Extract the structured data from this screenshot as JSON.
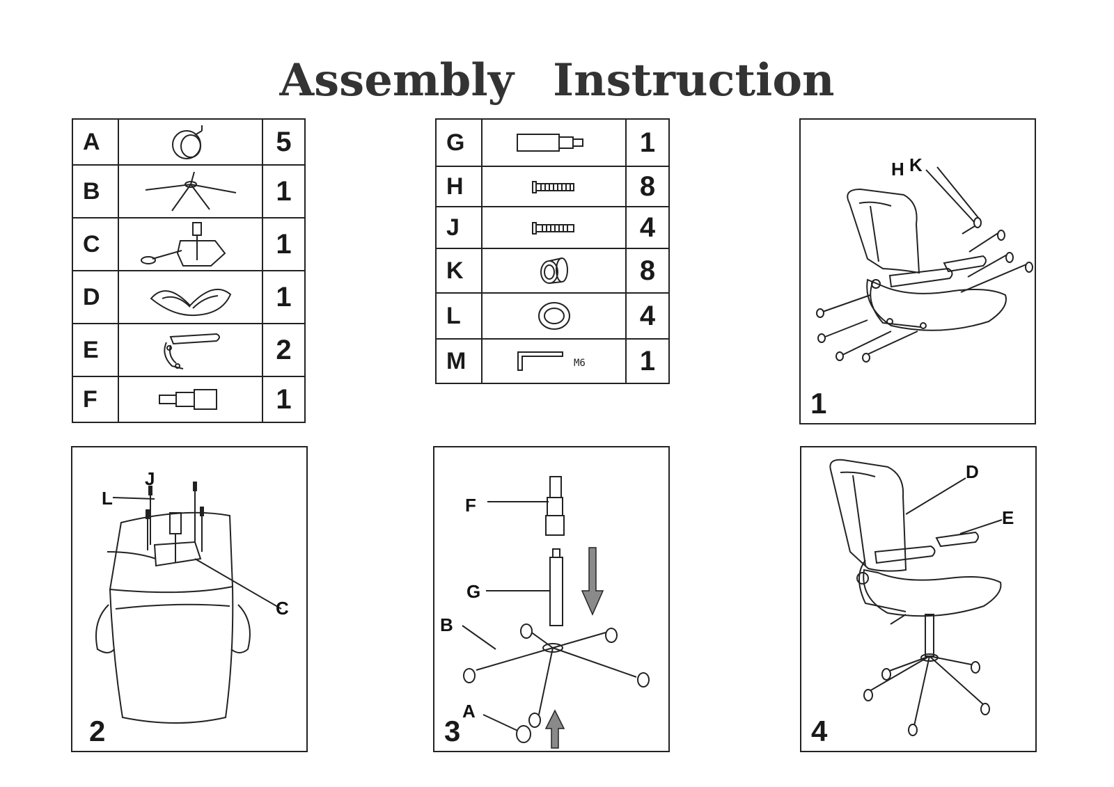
{
  "title": "Assembly Instruction",
  "parts_left": [
    {
      "letter": "A",
      "qty": "5",
      "icon": "caster-wheel-icon"
    },
    {
      "letter": "B",
      "qty": "1",
      "icon": "star-base-icon"
    },
    {
      "letter": "C",
      "qty": "1",
      "icon": "tilt-mechanism-icon"
    },
    {
      "letter": "D",
      "qty": "1",
      "icon": "chair-body-icon"
    },
    {
      "letter": "E",
      "qty": "2",
      "icon": "armrest-icon"
    },
    {
      "letter": "F",
      "qty": "1",
      "icon": "cylinder-cover-icon"
    }
  ],
  "parts_right": [
    {
      "letter": "G",
      "qty": "1",
      "icon": "gas-lift-icon"
    },
    {
      "letter": "H",
      "qty": "8",
      "icon": "long-bolt-icon"
    },
    {
      "letter": "J",
      "qty": "4",
      "icon": "short-bolt-icon"
    },
    {
      "letter": "K",
      "qty": "8",
      "icon": "spacer-sleeve-icon"
    },
    {
      "letter": "L",
      "qty": "4",
      "icon": "washer-icon"
    },
    {
      "letter": "M",
      "qty": "1",
      "icon": "allen-key-icon",
      "note": "M6"
    }
  ],
  "steps": [
    {
      "number": "1",
      "labels": [
        "H",
        "K"
      ]
    },
    {
      "number": "2",
      "labels": [
        "J",
        "L",
        "C"
      ]
    },
    {
      "number": "3",
      "labels": [
        "F",
        "G",
        "B",
        "A"
      ]
    },
    {
      "number": "4",
      "labels": [
        "D",
        "E"
      ]
    }
  ]
}
